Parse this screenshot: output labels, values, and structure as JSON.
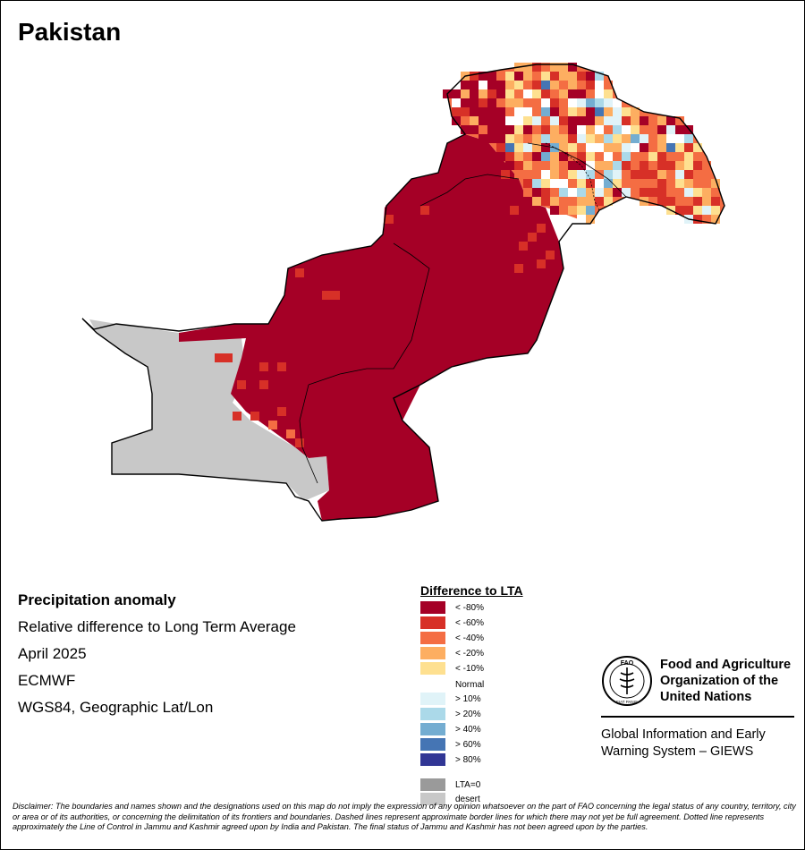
{
  "title": "Pakistan",
  "info": {
    "heading": "Precipitation anomaly",
    "subtitle": "Relative difference to Long Term Average",
    "period": "April 2025",
    "source": "ECMWF",
    "projection": "WGS84, Geographic Lat/Lon"
  },
  "legend": {
    "title": "Difference to LTA",
    "items": [
      {
        "label": "< -80%",
        "color": "#a50026"
      },
      {
        "label": "< -60%",
        "color": "#d73027"
      },
      {
        "label": "< -40%",
        "color": "#f46d43"
      },
      {
        "label": "< -20%",
        "color": "#fdae61"
      },
      {
        "label": "< -10%",
        "color": "#fee090"
      },
      {
        "label": "Normal",
        "color": "#ffffff"
      },
      {
        "label": "> 10%",
        "color": "#e0f3f8"
      },
      {
        "label": "> 20%",
        "color": "#abd9e9"
      },
      {
        "label": "> 40%",
        "color": "#74add1"
      },
      {
        "label": "> 60%",
        "color": "#4575b4"
      },
      {
        "label": "> 80%",
        "color": "#313695"
      },
      {
        "label": "LTA=0",
        "color": "#9a9a9a"
      },
      {
        "label": "desert",
        "color": "#c8c8c8"
      }
    ]
  },
  "organization": {
    "name_line1": "Food and Agriculture",
    "name_line2": "Organization of the",
    "name_line3": "United Nations",
    "logo_text": "FAO",
    "logo_motto": "FIAT PANIS",
    "system_line1": "Global Information and Early",
    "system_line2": "Warning System – GIEWS"
  },
  "disclaimer": "Disclaimer: The boundaries and names shown and the designations used on this map do not imply the expression of any opinion whatsoever on the part of FAO concerning the legal status of any country, territory, city or area or of its authorities, or concerning the delimitation of its frontiers and boundaries. Dashed lines represent approximate border lines for which there may not yet be full agreement. Dotted line represents approximately the Line of Control in Jammu and Kashmir agreed upon by India and Pakistan. The final status of Jammu and Kashmir has not been agreed upon by the parties.",
  "map": {
    "colors": {
      "dry_extreme": "#a50026",
      "dry_very": "#d73027",
      "dry": "#f46d43",
      "dry_mild": "#fdae61",
      "dry_slight": "#fee090",
      "wet_slight": "#e0f3f8",
      "wet": "#abd9e9",
      "wet_more": "#74add1",
      "wet_very": "#4575b4",
      "wet_extreme": "#313695",
      "desert": "#c8c8c8"
    }
  }
}
